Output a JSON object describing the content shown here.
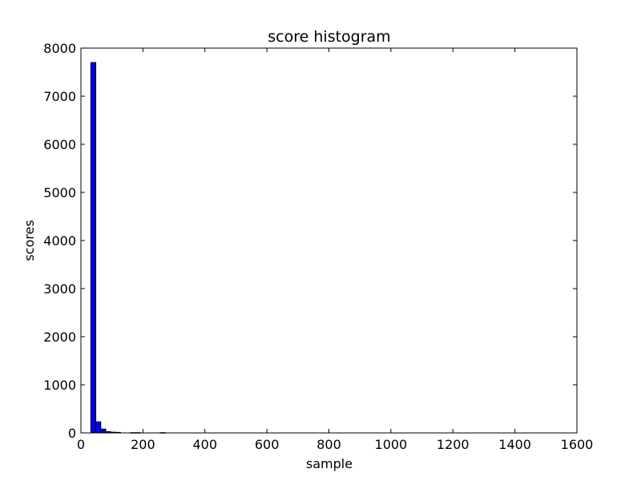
{
  "chart_data": {
    "type": "bar",
    "title": "score histogram",
    "xlabel": "sample",
    "ylabel": "scores",
    "xlim": [
      0,
      1600
    ],
    "ylim": [
      0,
      8000
    ],
    "xticks": [
      0,
      200,
      400,
      600,
      800,
      1000,
      1200,
      1400,
      1600
    ],
    "yticks": [
      0,
      1000,
      2000,
      3000,
      4000,
      5000,
      6000,
      7000,
      8000
    ],
    "bin_width": 16,
    "bins": [
      {
        "x0": 32,
        "x1": 48,
        "count": 7700
      },
      {
        "x0": 48,
        "x1": 64,
        "count": 230
      },
      {
        "x0": 64,
        "x1": 80,
        "count": 80
      },
      {
        "x0": 80,
        "x1": 96,
        "count": 25
      },
      {
        "x0": 96,
        "x1": 112,
        "count": 15
      },
      {
        "x0": 112,
        "x1": 128,
        "count": 10
      },
      {
        "x0": 160,
        "x1": 176,
        "count": 5
      },
      {
        "x0": 176,
        "x1": 192,
        "count": 5
      },
      {
        "x0": 256,
        "x1": 272,
        "count": 5
      }
    ],
    "bar_color": "#0000ff",
    "grid": false,
    "legend": false
  }
}
